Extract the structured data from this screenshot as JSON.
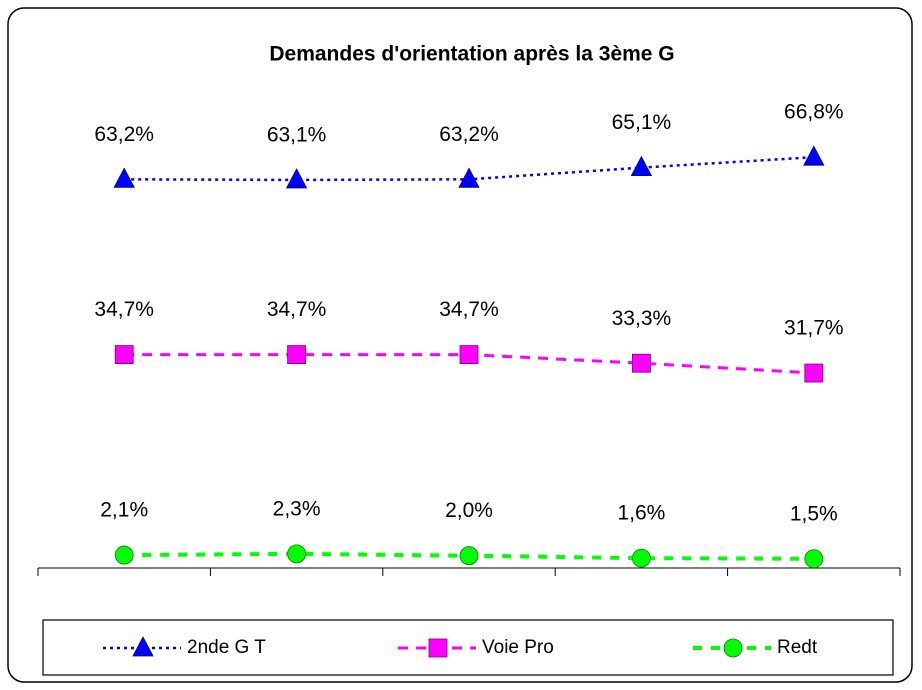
{
  "chart_data": {
    "type": "line",
    "title": "Demandes d'orientation après la 3ème G",
    "categories": [
      null,
      null,
      null,
      null,
      null
    ],
    "ylim": [
      0,
      70
    ],
    "legend": "bottom",
    "series": [
      {
        "name": "2nde G T",
        "color": "#0000ff",
        "marker": "triangle",
        "line_style": "dotted",
        "values": [
          63.2,
          63.1,
          63.2,
          65.1,
          66.8
        ],
        "value_labels": [
          "63,2%",
          "63,1%",
          "63,2%",
          "65,1%",
          "66,8%"
        ]
      },
      {
        "name": "Voie Pro",
        "color": "#ff00ff",
        "marker": "square",
        "line_style": "dashed",
        "values": [
          34.7,
          34.7,
          34.7,
          33.3,
          31.7
        ],
        "value_labels": [
          "34,7%",
          "34,7%",
          "34,7%",
          "33,3%",
          "31,7%"
        ]
      },
      {
        "name": "Redt",
        "color": "#00ff00",
        "marker": "circle",
        "line_style": "dashed-heavy",
        "values": [
          2.1,
          2.3,
          2.0,
          1.6,
          1.5
        ],
        "value_labels": [
          "2,1%",
          "2,3%",
          "2,0%",
          "1,6%",
          "1,5%"
        ]
      }
    ]
  }
}
